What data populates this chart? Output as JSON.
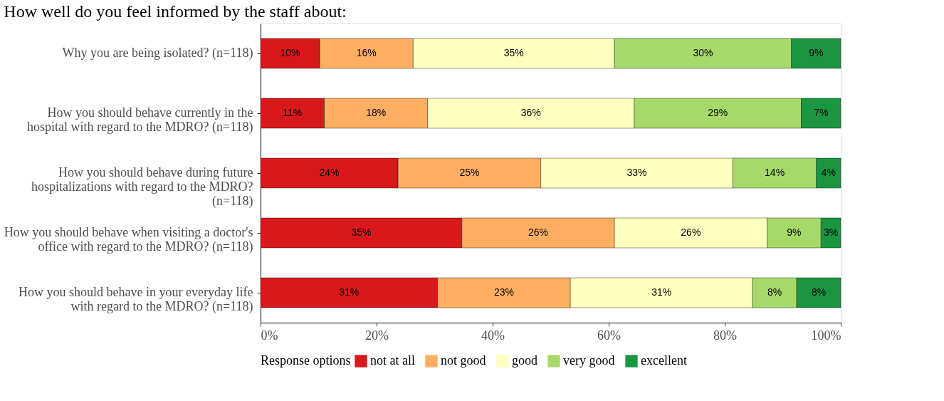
{
  "chart_data": {
    "type": "bar",
    "orientation": "horizontal",
    "stacked": true,
    "title": "How well do you feel informed by the staff about:",
    "categories": [
      "Why you are being isolated? (n=118)",
      "How you should behave currently in the hospital with regard to the MDRO? (n=118)",
      "How you should behave during future hospitalizations with regard to the MDRO? (n=118)",
      "How you should behave when visiting a doctor's office with regard to the MDRO? (n=118)",
      "How you should behave in your everyday life with regard to the MDRO? (n=118)"
    ],
    "series": [
      {
        "name": "not at all",
        "color": "#d7191c",
        "values": [
          10.2,
          11.0,
          23.7,
          34.7,
          30.5
        ],
        "value_labels": [
          "10%",
          "11%",
          "24%",
          "35%",
          "31%"
        ]
      },
      {
        "name": "not good",
        "color": "#fdae61",
        "values": [
          16.1,
          17.8,
          24.6,
          26.3,
          22.9
        ],
        "value_labels": [
          "16%",
          "18%",
          "25%",
          "26%",
          "23%"
        ]
      },
      {
        "name": "good",
        "color": "#ffffbf",
        "values": [
          34.7,
          35.6,
          33.1,
          26.3,
          31.4
        ],
        "value_labels": [
          "35%",
          "36%",
          "33%",
          "26%",
          "31%"
        ]
      },
      {
        "name": "very good",
        "color": "#a6d96a",
        "values": [
          30.5,
          28.8,
          14.4,
          9.3,
          7.6
        ],
        "value_labels": [
          "30%",
          "29%",
          "14%",
          "9%",
          "8%"
        ]
      },
      {
        "name": "excellent",
        "color": "#1a9641",
        "values": [
          8.5,
          6.8,
          4.2,
          3.4,
          7.6
        ],
        "value_labels": [
          "9%",
          "7%",
          "4%",
          "3%",
          "8%"
        ]
      }
    ],
    "legend_title": "Response options",
    "legend": "bottom",
    "xlim": [
      0,
      100
    ],
    "xticks": [
      {
        "value": 0,
        "label": "0%"
      },
      {
        "value": 20,
        "label": "20%"
      },
      {
        "value": 40,
        "label": "40%"
      },
      {
        "value": 60,
        "label": "60%"
      },
      {
        "value": 80,
        "label": "80%"
      },
      {
        "value": 100,
        "label": "100%"
      }
    ],
    "grid": false
  }
}
